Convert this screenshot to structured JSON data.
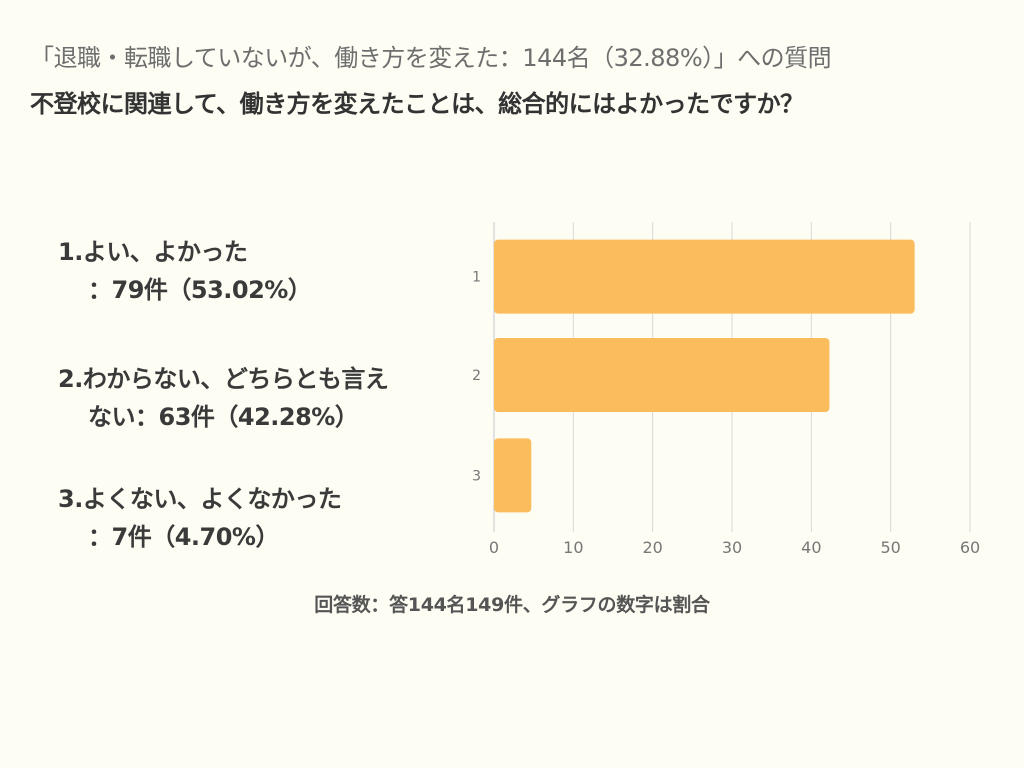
{
  "title": {
    "line1": "「退職・転職していないが、働き方を変えた：144名（32.88%）」への質問",
    "line2": "不登校に関連して、働き方を変えたことは、総合的にはよかったですか？"
  },
  "labels": [
    {
      "line1": "1.よい、よかった",
      "line2": "：79件（53.02%）"
    },
    {
      "line1": "2.わからない、どちらとも言え",
      "line2": "ない：63件（42.28%）"
    },
    {
      "line1": "3.よくない、よくなかった",
      "line2": "：7件（4.70%）"
    }
  ],
  "footer": "回答数：答144名149件、グラフの数字は割合",
  "colors": {
    "bar": "#fbbc5c",
    "grid": "#d9d9d9",
    "tick": "#777777"
  },
  "chart_data": {
    "type": "bar",
    "orientation": "horizontal",
    "categories": [
      "1",
      "2",
      "3"
    ],
    "values": [
      53.02,
      42.28,
      4.7
    ],
    "xlim": [
      0,
      60
    ],
    "xticks": [
      0,
      10,
      20,
      30,
      40,
      50,
      60
    ],
    "grid": true
  }
}
